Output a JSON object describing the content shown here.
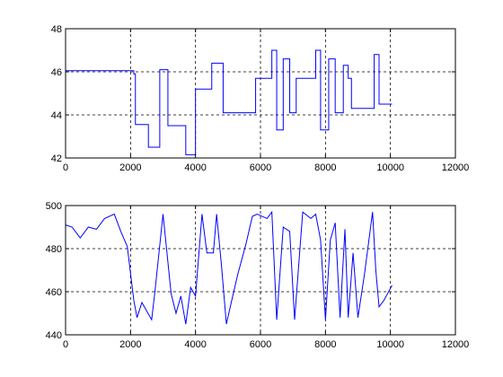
{
  "chart_data": [
    {
      "type": "line",
      "title": "",
      "xlabel": "",
      "ylabel": "",
      "xlim": [
        0,
        12000
      ],
      "ylim": [
        42,
        48
      ],
      "xticks": [
        0,
        2000,
        4000,
        6000,
        8000,
        10000,
        12000
      ],
      "xtick_labels": [
        "0",
        "2000",
        "4000",
        "6000",
        "8000",
        "10000",
        "12000"
      ],
      "yticks": [
        42,
        44,
        46,
        48
      ],
      "ytick_labels": [
        "42",
        "44",
        "46",
        "48"
      ],
      "grid": true,
      "color": "#0000ff",
      "series": [
        {
          "x": [
            0,
            2100,
            2100,
            2150,
            2150,
            2550,
            2550,
            2900,
            2900,
            3150,
            3150,
            3700,
            3700,
            4000,
            4000,
            4500,
            4500,
            4850,
            4850,
            5850,
            5850,
            6350,
            6350,
            6500,
            6500,
            6700,
            6700,
            6900,
            6900,
            7100,
            7100,
            7700,
            7700,
            7850,
            7850,
            8100,
            8100,
            8300,
            8300,
            8550,
            8550,
            8700,
            8700,
            8800,
            8800,
            9500,
            9500,
            9650,
            9650,
            9900,
            9900,
            10050
          ],
          "y": [
            46.05,
            46.05,
            45.9,
            45.9,
            43.55,
            43.55,
            42.5,
            42.5,
            46.1,
            46.1,
            43.5,
            43.5,
            42.15,
            42.15,
            45.2,
            45.2,
            46.4,
            46.4,
            44.1,
            44.1,
            45.7,
            45.7,
            47.0,
            47.0,
            43.3,
            43.3,
            46.6,
            46.6,
            44.1,
            44.1,
            45.7,
            45.7,
            47.0,
            47.0,
            43.3,
            43.3,
            46.6,
            46.6,
            44.1,
            44.1,
            46.3,
            46.3,
            45.7,
            45.7,
            44.3,
            44.3,
            46.8,
            46.8,
            44.5,
            44.5,
            44.5,
            44.5
          ]
        }
      ]
    },
    {
      "type": "line",
      "title": "",
      "xlabel": "",
      "ylabel": "",
      "xlim": [
        0,
        12000
      ],
      "ylim": [
        440,
        500
      ],
      "xticks": [
        0,
        2000,
        4000,
        6000,
        8000,
        10000,
        12000
      ],
      "xtick_labels": [
        "0",
        "2000",
        "4000",
        "6000",
        "8000",
        "10000",
        "12000"
      ],
      "yticks": [
        440,
        460,
        480,
        500
      ],
      "ytick_labels": [
        "440",
        "460",
        "480",
        "500"
      ],
      "grid": true,
      "color": "#0000ff",
      "series": [
        {
          "x": [
            0,
            200,
            450,
            700,
            950,
            1200,
            1500,
            1700,
            1900,
            2100,
            2200,
            2350,
            2500,
            2650,
            2750,
            3000,
            3250,
            3400,
            3550,
            3700,
            3850,
            4000,
            4200,
            4350,
            4550,
            4650,
            4800,
            4950,
            5100,
            5300,
            5550,
            5750,
            5900,
            6200,
            6350,
            6500,
            6700,
            6900,
            7050,
            7300,
            7550,
            7700,
            7850,
            8000,
            8150,
            8300,
            8450,
            8600,
            8700,
            8850,
            9000,
            9200,
            9450,
            9550,
            9650,
            9800,
            10050
          ],
          "y": [
            491,
            490,
            485,
            490,
            489,
            494,
            496,
            488,
            481,
            456,
            448,
            455,
            451,
            447,
            460,
            496,
            459,
            450,
            458,
            445,
            462,
            458,
            496,
            478,
            478,
            496,
            472,
            445,
            455,
            468,
            482,
            495,
            496,
            494,
            497,
            447,
            490,
            488,
            447,
            497,
            494,
            496,
            484,
            447,
            484,
            492,
            448,
            489,
            448,
            478,
            448,
            468,
            497,
            470,
            453,
            456,
            463
          ]
        }
      ]
    }
  ]
}
